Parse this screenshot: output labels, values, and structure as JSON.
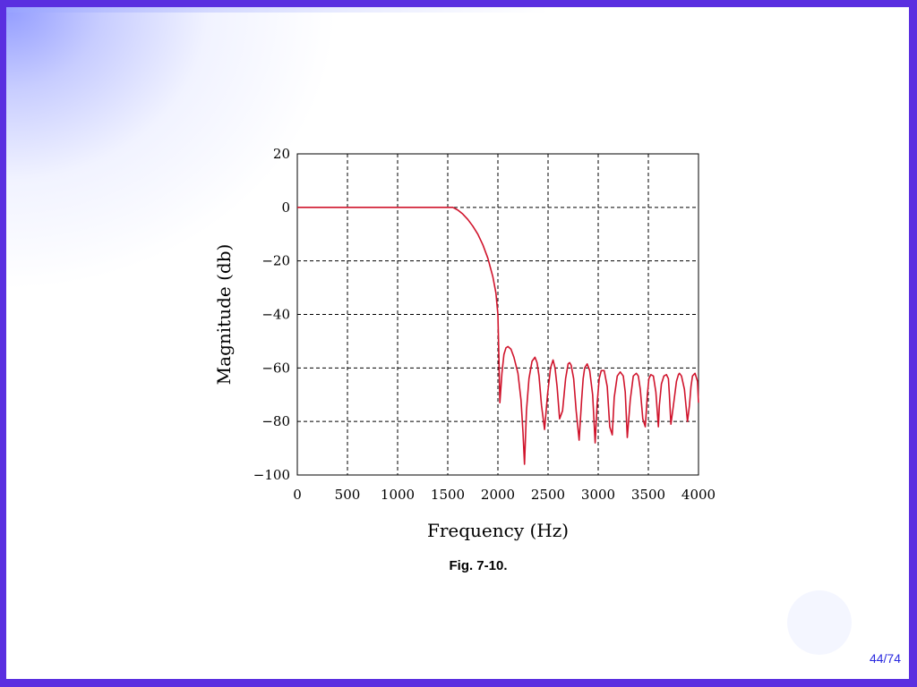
{
  "caption": "Fig. 7-10.",
  "page_number": "44/74",
  "colors": {
    "frame": "#5a2fe0",
    "curve": "#d0142c",
    "page_number": "#2a2adf",
    "corner_glow": "#8c96ff"
  },
  "chart_data": {
    "type": "line",
    "title": "",
    "xlabel": "Frequency (Hz)",
    "ylabel": "Magnitude (db)",
    "xlim": [
      0,
      4000
    ],
    "ylim": [
      -100,
      20
    ],
    "x_ticks": [
      0,
      500,
      1000,
      1500,
      2000,
      2500,
      3000,
      3500,
      4000
    ],
    "y_ticks": [
      20,
      0,
      -20,
      -40,
      -60,
      -80,
      -100
    ],
    "y_tick_labels": [
      "20",
      "0",
      "−20",
      "−40",
      "−60",
      "−80",
      "−100"
    ],
    "grid": true,
    "series": [
      {
        "x": [
          0,
          1500,
          1550,
          1600,
          1650,
          1700,
          1750,
          1800,
          1850,
          1900,
          1950,
          1980,
          2000,
          2010,
          2020,
          2040,
          2060,
          2080,
          2100,
          2130,
          2160,
          2200,
          2230,
          2250,
          2265,
          2285,
          2310,
          2340,
          2370,
          2390,
          2410,
          2435,
          2465,
          2495,
          2525,
          2550,
          2570,
          2590,
          2615,
          2645,
          2675,
          2700,
          2715,
          2730,
          2755,
          2780,
          2810,
          2835,
          2850,
          2865,
          2890,
          2915,
          2945,
          2970,
          2990,
          3010,
          3030,
          3060,
          3090,
          3115,
          3140,
          3160,
          3190,
          3220,
          3250,
          3270,
          3290,
          3320,
          3350,
          3380,
          3400,
          3420,
          3445,
          3470,
          3490,
          3505,
          3525,
          3550,
          3575,
          3600,
          3610,
          3630,
          3655,
          3680,
          3700,
          3710,
          3725,
          3750,
          3780,
          3800,
          3810,
          3830,
          3860,
          3890,
          3910,
          3925,
          3940,
          3965,
          3990,
          4000
        ],
        "y": [
          0,
          0,
          0,
          -1,
          -2.5,
          -4.5,
          -7,
          -10,
          -14,
          -19,
          -26,
          -32,
          -40,
          -56,
          -73,
          -62,
          -55,
          -52.5,
          -52,
          -53,
          -56,
          -62,
          -72,
          -84,
          -96,
          -76,
          -64,
          -57.5,
          -56,
          -58,
          -63,
          -74,
          -83,
          -70,
          -60,
          -57,
          -60,
          -67,
          -79,
          -76,
          -64,
          -58.5,
          -58,
          -59,
          -64,
          -76,
          -87,
          -72,
          -64,
          -60,
          -58.5,
          -61,
          -70,
          -88,
          -73,
          -64,
          -61,
          -61,
          -67,
          -82,
          -85,
          -71,
          -63,
          -61.5,
          -63,
          -69,
          -86,
          -72,
          -63,
          -62,
          -63,
          -68,
          -79,
          -82,
          -70,
          -64,
          -62.5,
          -63,
          -69,
          -82,
          -74,
          -66,
          -63,
          -62.5,
          -64,
          -70,
          -81,
          -74,
          -65,
          -62.5,
          -62,
          -63,
          -68,
          -80,
          -74,
          -67,
          -63,
          -62,
          -65,
          -73
        ]
      }
    ]
  }
}
